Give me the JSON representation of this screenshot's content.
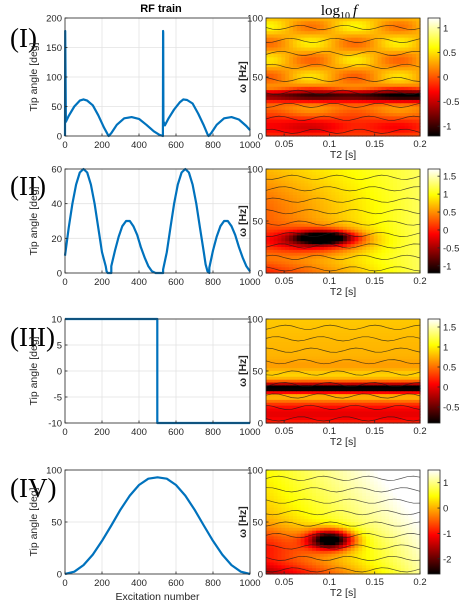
{
  "figure": {
    "rf_title": "RF train",
    "map_title_main": "log",
    "map_title_sub": "10",
    "map_title_var": "f"
  },
  "chart_data": [
    {
      "type": "line",
      "panel": "(I)",
      "xlabel": "",
      "ylabel": "Tip angle [deg]",
      "xlim": [
        0,
        1000
      ],
      "ylim": [
        0,
        200
      ],
      "xticks": [
        0,
        200,
        400,
        600,
        800,
        1000
      ],
      "yticks": [
        0,
        50,
        100,
        150,
        200
      ],
      "color": "#0072bd",
      "grid": true,
      "series": [
        {
          "x": [
            0,
            1,
            5,
            20,
            50,
            80,
            100,
            120,
            150,
            180,
            210,
            230,
            236,
            250,
            280,
            320,
            360,
            400,
            440,
            480,
            510,
            529,
            530,
            531,
            532,
            540,
            560,
            590,
            620,
            640,
            660,
            690,
            720,
            750,
            770,
            776,
            790,
            820,
            860,
            900,
            940,
            980,
            1000
          ],
          "y": [
            0,
            178,
            24,
            34,
            50,
            60,
            62,
            60,
            52,
            35,
            15,
            3,
            0,
            5,
            19,
            30,
            32,
            29,
            19,
            8,
            2,
            0,
            178,
            175,
            25,
            18,
            30,
            45,
            57,
            62,
            61,
            55,
            38,
            18,
            3,
            0,
            5,
            19,
            30,
            32,
            28,
            17,
            10
          ]
        }
      ]
    },
    {
      "type": "line",
      "panel": "(II)",
      "xlabel": "",
      "ylabel": "Tip angle [deg]",
      "xlim": [
        0,
        1000
      ],
      "ylim": [
        0,
        60
      ],
      "xticks": [
        0,
        200,
        400,
        600,
        800,
        1000
      ],
      "yticks": [
        0,
        20,
        40,
        60
      ],
      "color": "#0072bd",
      "grid": true,
      "series": [
        {
          "x": [
            0,
            20,
            40,
            60,
            80,
            100,
            120,
            140,
            160,
            180,
            200,
            220,
            225,
            230,
            250,
            250,
            270,
            290,
            310,
            330,
            350,
            370,
            390,
            410,
            430,
            450,
            470,
            490,
            495,
            500,
            530,
            530,
            550,
            570,
            590,
            610,
            630,
            650,
            670,
            690,
            710,
            730,
            750,
            760,
            770,
            780,
            780,
            800,
            820,
            840,
            860,
            880,
            900,
            920,
            940,
            960,
            980,
            1000
          ],
          "y": [
            10,
            26,
            40,
            51,
            58,
            60,
            58,
            51,
            40,
            26,
            12,
            4,
            1,
            0,
            0,
            4,
            13,
            21,
            27,
            30,
            30,
            27,
            22,
            15,
            9,
            4,
            1,
            0,
            0,
            0,
            0,
            2,
            12,
            26,
            40,
            51,
            58,
            60,
            58,
            51,
            40,
            26,
            12,
            5,
            1,
            0,
            3,
            13,
            21,
            27,
            30,
            30,
            27,
            22,
            15,
            9,
            4,
            1
          ]
        }
      ]
    },
    {
      "type": "line",
      "panel": "(III)",
      "xlabel": "",
      "ylabel": "Tip angle [deg]",
      "xlim": [
        0,
        1000
      ],
      "ylim": [
        -10,
        10
      ],
      "xticks": [
        0,
        200,
        400,
        600,
        800,
        1000
      ],
      "yticks": [
        -10,
        -5,
        0,
        5,
        10
      ],
      "color": "#0072bd",
      "grid": true,
      "series": [
        {
          "x": [
            0,
            499,
            499,
            1000
          ],
          "y": [
            10,
            10,
            -10,
            -10
          ]
        }
      ]
    },
    {
      "type": "line",
      "panel": "(IV)",
      "xlabel": "Excitation number",
      "ylabel": "Tip angle [deg]",
      "xlim": [
        0,
        1000
      ],
      "ylim": [
        0,
        100
      ],
      "xticks": [
        0,
        200,
        400,
        600,
        800,
        1000
      ],
      "yticks": [
        0,
        50,
        100
      ],
      "color": "#0072bd",
      "grid": true,
      "series": [
        {
          "x": [
            0,
            50,
            100,
            150,
            200,
            250,
            300,
            350,
            400,
            450,
            500,
            550,
            600,
            650,
            700,
            750,
            800,
            850,
            900,
            950,
            1000
          ],
          "y": [
            0,
            2.2,
            8.6,
            18.7,
            31.8,
            46.6,
            61.9,
            75.4,
            85.6,
            91.6,
            93,
            91.6,
            85.6,
            75.4,
            61.9,
            46.6,
            31.8,
            18.7,
            8.6,
            2.2,
            0
          ]
        }
      ]
    },
    {
      "type": "heatmap",
      "panel": "(I)",
      "xlabel": "T2 [s]",
      "ylabel": "ω [Hz]",
      "xlim": [
        0.03,
        0.2
      ],
      "ylim": [
        0,
        100
      ],
      "xticks": [
        0.05,
        0.1,
        0.15,
        0.2
      ],
      "yticks": [
        0,
        50,
        100
      ],
      "colorbar_ticks": [
        1,
        0.5,
        0,
        -0.5,
        -1
      ],
      "colorbar_range": [
        -1.2,
        1.2
      ],
      "colormap": "hot"
    },
    {
      "type": "heatmap",
      "panel": "(II)",
      "xlabel": "T2 [s]",
      "ylabel": "ω [Hz]",
      "xlim": [
        0.03,
        0.2
      ],
      "ylim": [
        0,
        100
      ],
      "xticks": [
        0.05,
        0.1,
        0.15,
        0.2
      ],
      "yticks": [
        0,
        50,
        100
      ],
      "colorbar_ticks": [
        1.5,
        1,
        0.5,
        0,
        -0.5,
        -1
      ],
      "colorbar_range": [
        -1.2,
        1.7
      ],
      "colormap": "hot"
    },
    {
      "type": "heatmap",
      "panel": "(III)",
      "xlabel": "T2 [s]",
      "ylabel": "ω [Hz]",
      "xlim": [
        0.03,
        0.2
      ],
      "ylim": [
        0,
        100
      ],
      "xticks": [
        0.05,
        0.1,
        0.15,
        0.2
      ],
      "yticks": [
        0,
        50,
        100
      ],
      "colorbar_ticks": [
        1.5,
        1,
        0.5,
        0,
        -0.5
      ],
      "colorbar_range": [
        -0.9,
        1.7
      ],
      "colormap": "hot"
    },
    {
      "type": "heatmap",
      "panel": "(IV)",
      "xlabel": "T2 [s]",
      "ylabel": "ω [Hz]",
      "xlim": [
        0.03,
        0.2
      ],
      "ylim": [
        0,
        100
      ],
      "xticks": [
        0.05,
        0.1,
        0.15,
        0.2
      ],
      "yticks": [
        0,
        50,
        100
      ],
      "colorbar_ticks": [
        1,
        0,
        -1,
        -2
      ],
      "colorbar_range": [
        -2.6,
        1.5
      ],
      "colormap": "hot"
    }
  ]
}
